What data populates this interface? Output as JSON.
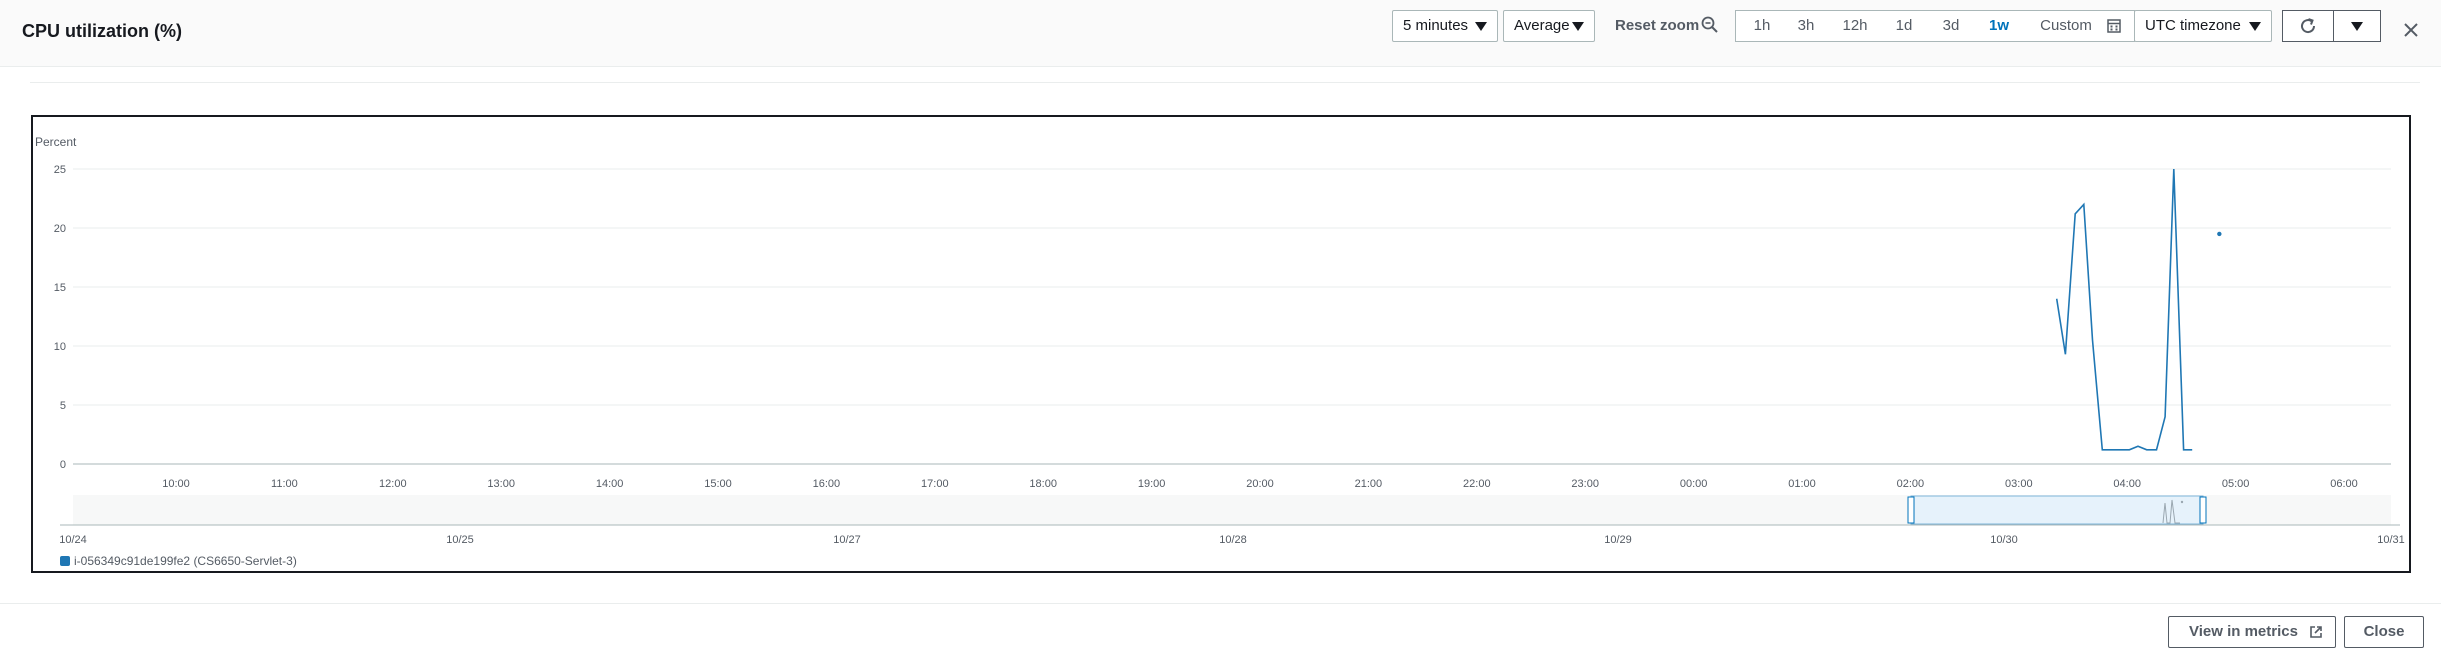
{
  "header": {
    "title": "CPU utilization (%)",
    "period_select": "5 minutes",
    "stat_select": "Average",
    "reset_zoom": "Reset zoom",
    "ranges": [
      "1h",
      "3h",
      "12h",
      "1d",
      "3d",
      "1w",
      "Custom"
    ],
    "active_range": "1w",
    "timezone_select": "UTC timezone"
  },
  "chart_data": {
    "type": "line",
    "ylabel": "Percent",
    "ylim": [
      0,
      25
    ],
    "yticks": [
      "0",
      "5",
      "10",
      "15",
      "20",
      "25"
    ],
    "xticks": [
      "10:00",
      "11:00",
      "12:00",
      "13:00",
      "14:00",
      "15:00",
      "16:00",
      "17:00",
      "18:00",
      "19:00",
      "20:00",
      "21:00",
      "22:00",
      "23:00",
      "00:00",
      "01:00",
      "02:00",
      "03:00",
      "04:00",
      "05:00",
      "06:00"
    ],
    "grid": true,
    "series": [
      {
        "name": "i-056349c91de199fe2 (CS6650-Servlet-3)",
        "color": "#1f77b4",
        "x_hours": [
          3.35,
          3.43,
          3.52,
          3.6,
          3.68,
          3.77,
          3.85,
          3.93,
          4.02,
          4.1,
          4.18,
          4.27,
          4.35,
          4.43,
          4.52,
          4.6
        ],
        "values": [
          14,
          9.3,
          21.2,
          22,
          10.5,
          1.2,
          1.2,
          1.2,
          1.2,
          1.5,
          1.2,
          1.2,
          4,
          25,
          1.2,
          1.2
        ],
        "isolated_point": {
          "x_hours": 4.85,
          "value": 19.5
        }
      }
    ],
    "overview": {
      "date_ticks": [
        "10/24",
        "10/25",
        "10/27",
        "10/28",
        "10/29",
        "10/30",
        "10/31"
      ]
    },
    "legend_position": "bottom-left"
  },
  "footer": {
    "view_in_metrics": "View in metrics",
    "close": "Close"
  },
  "icons": [
    "zoom-icon",
    "calendar-icon",
    "refresh-icon",
    "external-link-icon",
    "close-icon"
  ]
}
